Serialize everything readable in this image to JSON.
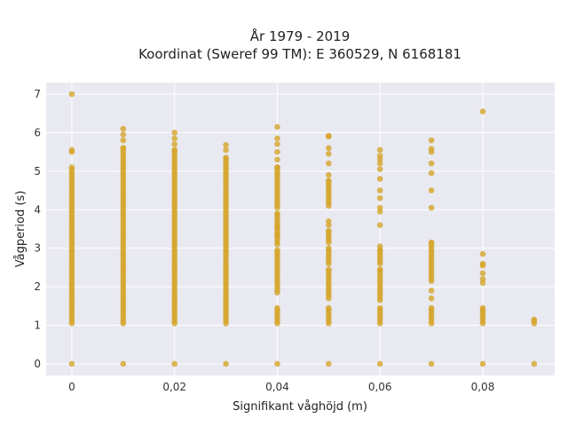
{
  "chart_data": {
    "type": "scatter",
    "title": [
      "År 1979 - 2019",
      "Koordinat (Sweref 99 TM): E 360529, N 6168181"
    ],
    "xlabel": "Signifikant våghöjd (m)",
    "ylabel": "Vågperiod (s)",
    "xlim": [
      -0.005,
      0.094
    ],
    "ylim": [
      -0.3,
      7.3
    ],
    "xticks": [
      0,
      0.02,
      0.04,
      0.06,
      0.08
    ],
    "xtick_labels": [
      "0",
      "0,02",
      "0,04",
      "0,06",
      "0,08"
    ],
    "yticks": [
      0,
      1,
      2,
      3,
      4,
      5,
      6,
      7
    ],
    "ytick_labels": [
      "0",
      "1",
      "2",
      "3",
      "4",
      "5",
      "6",
      "7"
    ],
    "grid": true,
    "point_color": "#d4a52a",
    "background_color": "#e9e9f1",
    "columns": [
      {
        "x": 0.0,
        "zero": true,
        "ranges": [
          [
            1.05,
            5.1
          ]
        ],
        "points": [
          5.5,
          5.55,
          7.0
        ]
      },
      {
        "x": 0.01,
        "zero": true,
        "ranges": [
          [
            1.05,
            5.6
          ]
        ],
        "points": [
          5.8,
          5.95,
          6.1
        ]
      },
      {
        "x": 0.02,
        "zero": true,
        "ranges": [
          [
            1.05,
            5.55
          ]
        ],
        "points": [
          5.7,
          5.85,
          6.0
        ]
      },
      {
        "x": 0.03,
        "zero": true,
        "ranges": [
          [
            1.05,
            5.35
          ]
        ],
        "points": [
          5.55,
          5.68
        ]
      },
      {
        "x": 0.04,
        "zero": true,
        "ranges": [
          [
            1.05,
            1.45
          ],
          [
            1.85,
            2.95
          ],
          [
            3.1,
            3.9
          ],
          [
            4.05,
            5.1
          ]
        ],
        "points": [
          3.35,
          3.55,
          5.3,
          5.5,
          5.7,
          5.85,
          6.15
        ]
      },
      {
        "x": 0.05,
        "zero": true,
        "ranges": [
          [
            1.05,
            1.45
          ],
          [
            1.7,
            2.45
          ],
          [
            2.6,
            3.0
          ],
          [
            3.15,
            3.45
          ],
          [
            4.1,
            4.75
          ]
        ],
        "points": [
          3.6,
          3.7,
          4.9,
          5.2,
          5.45,
          5.6,
          5.9,
          5.92
        ]
      },
      {
        "x": 0.06,
        "zero": true,
        "ranges": [
          [
            1.05,
            1.45
          ],
          [
            1.65,
            2.45
          ],
          [
            2.6,
            2.95
          ]
        ],
        "points": [
          3.05,
          3.6,
          3.95,
          4.05,
          4.3,
          4.5,
          4.8,
          5.05,
          5.2,
          5.3,
          5.4,
          5.55
        ]
      },
      {
        "x": 0.07,
        "zero": true,
        "ranges": [
          [
            1.05,
            1.45
          ],
          [
            2.15,
            3.15
          ]
        ],
        "points": [
          1.7,
          1.9,
          4.05,
          4.5,
          4.95,
          5.2,
          5.5,
          5.58,
          5.8
        ]
      },
      {
        "x": 0.08,
        "zero": true,
        "ranges": [
          [
            1.05,
            1.45
          ]
        ],
        "points": [
          2.1,
          2.2,
          2.35,
          2.55,
          2.6,
          2.85,
          6.55
        ]
      },
      {
        "x": 0.09,
        "zero": true,
        "ranges": [
          [
            1.05,
            1.15
          ]
        ],
        "points": []
      }
    ]
  }
}
